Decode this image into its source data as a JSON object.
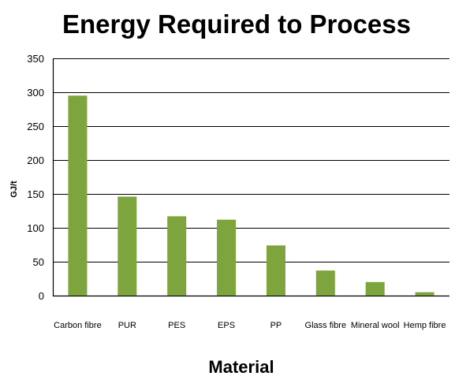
{
  "chart_data": {
    "type": "bar",
    "title": "Energy Required to Process",
    "xlabel": "Material",
    "ylabel": "GJ/t",
    "categories": [
      "Carbon fibre",
      "PUR",
      "PES",
      "EPS",
      "PP",
      "Glass fibre",
      "Mineral wool",
      "Hemp fibre"
    ],
    "values": [
      295,
      146,
      117,
      112,
      74,
      37,
      20,
      5
    ],
    "ylim": [
      0,
      350
    ],
    "yticks": [
      0,
      50,
      100,
      150,
      200,
      250,
      300,
      350
    ],
    "grid": true,
    "legend": "none",
    "bar_color": "#7ea43d"
  }
}
